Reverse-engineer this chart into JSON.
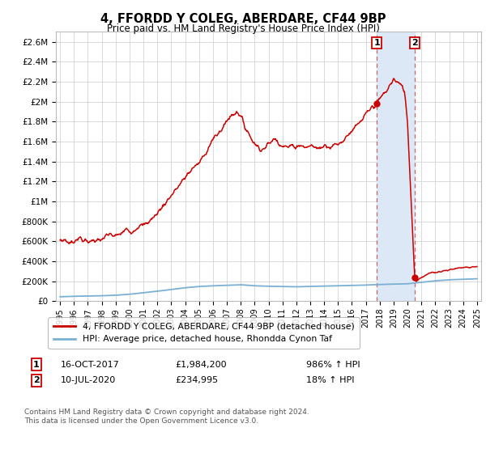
{
  "title": "4, FFORDD Y COLEG, ABERDARE, CF44 9BP",
  "subtitle": "Price paid vs. HM Land Registry's House Price Index (HPI)",
  "ylim": [
    0,
    2700000
  ],
  "yticks": [
    0,
    200000,
    400000,
    600000,
    800000,
    1000000,
    1200000,
    1400000,
    1600000,
    1800000,
    2000000,
    2200000,
    2400000,
    2600000
  ],
  "ytick_labels": [
    "£0",
    "£200K",
    "£400K",
    "£600K",
    "£800K",
    "£1M",
    "£1.2M",
    "£1.4M",
    "£1.6M",
    "£1.8M",
    "£2M",
    "£2.2M",
    "£2.4M",
    "£2.6M"
  ],
  "xlim_start": 1994.7,
  "xlim_end": 2025.3,
  "xtick_years": [
    1995,
    1996,
    1997,
    1998,
    1999,
    2000,
    2001,
    2002,
    2003,
    2004,
    2005,
    2006,
    2007,
    2008,
    2009,
    2010,
    2011,
    2012,
    2013,
    2014,
    2015,
    2016,
    2017,
    2018,
    2019,
    2020,
    2021,
    2022,
    2023,
    2024,
    2025
  ],
  "sale1_x": 2017.79,
  "sale1_y": 1984200,
  "sale1_label": "1",
  "sale2_x": 2020.52,
  "sale2_y": 234995,
  "sale2_label": "2",
  "red_line_color": "#cc0000",
  "blue_line_color": "#7ab0d4",
  "shade_color": "#dce8f5",
  "grid_color": "#cccccc",
  "background_color": "#ffffff",
  "legend_entry1": "4, FFORDD Y COLEG, ABERDARE, CF44 9BP (detached house)",
  "legend_entry2": "HPI: Average price, detached house, Rhondda Cynon Taf",
  "annotation1_date": "16-OCT-2017",
  "annotation1_price": "£1,984,200",
  "annotation1_hpi": "986% ↑ HPI",
  "annotation2_date": "10-JUL-2020",
  "annotation2_price": "£234,995",
  "annotation2_hpi": "18% ↑ HPI",
  "footer": "Contains HM Land Registry data © Crown copyright and database right 2024.\nThis data is licensed under the Open Government Licence v3.0."
}
